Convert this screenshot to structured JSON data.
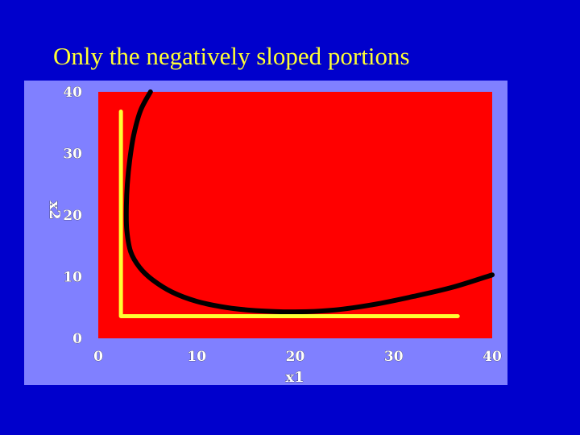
{
  "slide": {
    "title": "Only the negatively sloped portions",
    "background_color": "#0000cc",
    "title_color": "#ffff33"
  },
  "chart_data": {
    "type": "line",
    "title": "",
    "xlabel": "x1",
    "ylabel": "x2",
    "xlim": [
      0,
      40
    ],
    "ylim": [
      0,
      40
    ],
    "x_ticks": [
      "0",
      "10",
      "20",
      "30",
      "40"
    ],
    "y_ticks": [
      "0",
      "10",
      "20",
      "30",
      "40"
    ],
    "grid": false,
    "plot_background": "#ff0000",
    "panel_background": "#8080ff",
    "series": [
      {
        "color": "#000000",
        "points": [
          [
            5.3,
            40
          ],
          [
            4.3,
            37
          ],
          [
            3.6,
            33
          ],
          [
            3.2,
            29
          ],
          [
            2.95,
            25
          ],
          [
            2.85,
            21
          ],
          [
            2.9,
            17.5
          ],
          [
            3.3,
            14
          ],
          [
            4.2,
            11.5
          ],
          [
            5.5,
            9.5
          ],
          [
            7.5,
            7.5
          ],
          [
            10,
            6
          ],
          [
            13,
            5
          ],
          [
            16,
            4.5
          ],
          [
            20,
            4.3
          ],
          [
            24,
            4.6
          ],
          [
            28,
            5.5
          ],
          [
            32,
            6.8
          ],
          [
            36,
            8.3
          ],
          [
            40,
            10.3
          ]
        ]
      },
      {
        "color": "#ffff33",
        "points": [
          [
            2.3,
            36.8
          ],
          [
            2.3,
            3.6
          ],
          [
            36.5,
            3.6
          ]
        ]
      }
    ]
  }
}
